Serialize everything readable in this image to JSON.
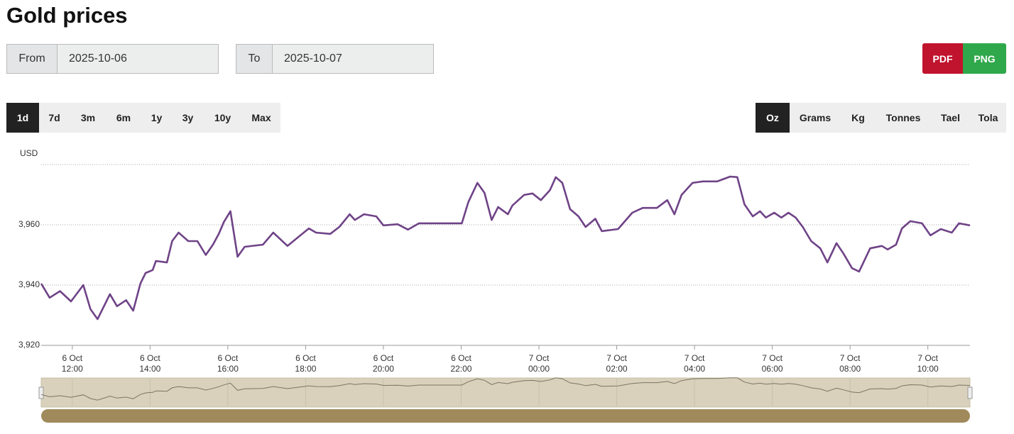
{
  "header": {
    "title": "Gold prices"
  },
  "controls": {
    "from": {
      "label": "From",
      "value": "2025-10-06"
    },
    "to": {
      "label": "To",
      "value": "2025-10-07"
    },
    "export": [
      "PDF",
      "PNG"
    ],
    "ranges": [
      "1d",
      "7d",
      "3m",
      "6m",
      "1y",
      "3y",
      "10y",
      "Max"
    ],
    "active_range": 0,
    "units": [
      "Oz",
      "Grams",
      "Kg",
      "Tonnes",
      "Tael",
      "Tola"
    ],
    "active_unit": 0
  },
  "chart_data": {
    "type": "line",
    "y_label": "USD",
    "color": "#6f4387",
    "grid": true,
    "ylim": [
      3920,
      3980
    ],
    "yticks": [
      {
        "value": 3920,
        "label": "3,920"
      },
      {
        "value": 3940,
        "label": "3,940"
      },
      {
        "value": 3960,
        "label": "3,960"
      }
    ],
    "xlim": [
      "2025-10-06T11:12",
      "2025-10-07T11:05"
    ],
    "xticks": [
      {
        "value": "2025-10-06T12:00",
        "label": [
          "6 Oct",
          "12:00"
        ]
      },
      {
        "value": "2025-10-06T14:00",
        "label": [
          "6 Oct",
          "14:00"
        ]
      },
      {
        "value": "2025-10-06T16:00",
        "label": [
          "6 Oct",
          "16:00"
        ]
      },
      {
        "value": "2025-10-06T18:00",
        "label": [
          "6 Oct",
          "18:00"
        ]
      },
      {
        "value": "2025-10-06T20:00",
        "label": [
          "6 Oct",
          "20:00"
        ]
      },
      {
        "value": "2025-10-06T22:00",
        "label": [
          "6 Oct",
          "22:00"
        ]
      },
      {
        "value": "2025-10-07T00:00",
        "label": [
          "7 Oct",
          "00:00"
        ]
      },
      {
        "value": "2025-10-07T02:00",
        "label": [
          "7 Oct",
          "02:00"
        ]
      },
      {
        "value": "2025-10-07T04:00",
        "label": [
          "7 Oct",
          "04:00"
        ]
      },
      {
        "value": "2025-10-07T06:00",
        "label": [
          "7 Oct",
          "06:00"
        ]
      },
      {
        "value": "2025-10-07T08:00",
        "label": [
          "7 Oct",
          "08:00"
        ]
      },
      {
        "value": "2025-10-07T10:00",
        "label": [
          "7 Oct",
          "10:00"
        ]
      }
    ],
    "x": [
      "2025-10-06T11:12",
      "2025-10-06T11:25",
      "2025-10-06T11:41",
      "2025-10-06T11:58",
      "2025-10-06T12:17",
      "2025-10-06T12:28",
      "2025-10-06T12:39",
      "2025-10-06T12:58",
      "2025-10-06T13:09",
      "2025-10-06T13:23",
      "2025-10-06T13:34",
      "2025-10-06T13:45",
      "2025-10-06T13:53",
      "2025-10-06T14:04",
      "2025-10-06T14:09",
      "2025-10-06T14:26",
      "2025-10-06T14:34",
      "2025-10-06T14:44",
      "2025-10-06T14:59",
      "2025-10-06T15:13",
      "2025-10-06T15:26",
      "2025-10-06T15:37",
      "2025-10-06T15:46",
      "2025-10-06T15:54",
      "2025-10-06T16:04",
      "2025-10-06T16:15",
      "2025-10-06T16:26",
      "2025-10-06T16:54",
      "2025-10-06T17:10",
      "2025-10-06T17:32",
      "2025-10-06T17:48",
      "2025-10-06T18:05",
      "2025-10-06T18:16",
      "2025-10-06T18:38",
      "2025-10-06T18:52",
      "2025-10-06T19:08",
      "2025-10-06T19:16",
      "2025-10-06T19:30",
      "2025-10-06T19:49",
      "2025-10-06T20:00",
      "2025-10-06T20:22",
      "2025-10-06T20:38",
      "2025-10-06T20:55",
      "2025-10-06T22:01",
      "2025-10-06T22:11",
      "2025-10-06T22:25",
      "2025-10-06T22:36",
      "2025-10-06T22:47",
      "2025-10-06T22:57",
      "2025-10-06T23:12",
      "2025-10-06T23:19",
      "2025-10-06T23:37",
      "2025-10-06T23:50",
      "2025-10-07T00:03",
      "2025-10-07T00:17",
      "2025-10-07T00:26",
      "2025-10-07T00:36",
      "2025-10-07T00:48",
      "2025-10-07T01:01",
      "2025-10-07T01:12",
      "2025-10-07T01:27",
      "2025-10-07T01:37",
      "2025-10-07T02:02",
      "2025-10-07T02:24",
      "2025-10-07T02:40",
      "2025-10-07T03:02",
      "2025-10-07T03:18",
      "2025-10-07T03:29",
      "2025-10-07T03:40",
      "2025-10-07T03:57",
      "2025-10-07T04:13",
      "2025-10-07T04:35",
      "2025-10-07T04:55",
      "2025-10-07T05:06",
      "2025-10-07T05:17",
      "2025-10-07T05:30",
      "2025-10-07T05:41",
      "2025-10-07T05:50",
      "2025-10-07T06:03",
      "2025-10-07T06:14",
      "2025-10-07T06:25",
      "2025-10-07T06:36",
      "2025-10-07T06:47",
      "2025-10-07T07:00",
      "2025-10-07T07:14",
      "2025-10-07T07:25",
      "2025-10-07T07:39",
      "2025-10-07T07:50",
      "2025-10-07T08:03",
      "2025-10-07T08:14",
      "2025-10-07T08:31",
      "2025-10-07T08:49",
      "2025-10-07T08:58",
      "2025-10-07T09:11",
      "2025-10-07T09:20",
      "2025-10-07T09:33",
      "2025-10-07T09:51",
      "2025-10-07T10:04",
      "2025-10-07T10:20",
      "2025-10-07T10:37",
      "2025-10-07T10:48",
      "2025-10-07T11:05"
    ],
    "values": [
      3940.5,
      3935.8,
      3938,
      3934.6,
      3940,
      3932,
      3928.7,
      3937,
      3933,
      3935,
      3931.5,
      3940.5,
      3944,
      3945,
      3948,
      3947.5,
      3954.6,
      3957.4,
      3954.6,
      3954.6,
      3950,
      3953.4,
      3957,
      3961,
      3964.5,
      3949.4,
      3952.7,
      3953.4,
      3957.4,
      3953,
      3955.8,
      3958.8,
      3957.4,
      3957,
      3959.3,
      3963.5,
      3961.6,
      3963.5,
      3962.8,
      3959.8,
      3960.2,
      3958.4,
      3960.5,
      3960.5,
      3967.5,
      3973.9,
      3970.6,
      3961.6,
      3965.9,
      3963.5,
      3966.4,
      3969.9,
      3970.4,
      3968.2,
      3971.5,
      3975.8,
      3973.9,
      3965.2,
      3962.8,
      3959.3,
      3962,
      3957.9,
      3958.6,
      3964,
      3965.6,
      3965.6,
      3968.2,
      3963.5,
      3969.9,
      3973.9,
      3974.4,
      3974.4,
      3976,
      3975.8,
      3966.8,
      3962.8,
      3964.5,
      3962.4,
      3964,
      3962.4,
      3964,
      3962.4,
      3959.3,
      3954.6,
      3952.2,
      3947.5,
      3953.9,
      3950.4,
      3945.6,
      3944.5,
      3952.2,
      3953,
      3951.8,
      3953.4,
      3958.8,
      3961.2,
      3960.5,
      3956.5,
      3958.6,
      3957.4,
      3960.5,
      3959.8
    ]
  }
}
